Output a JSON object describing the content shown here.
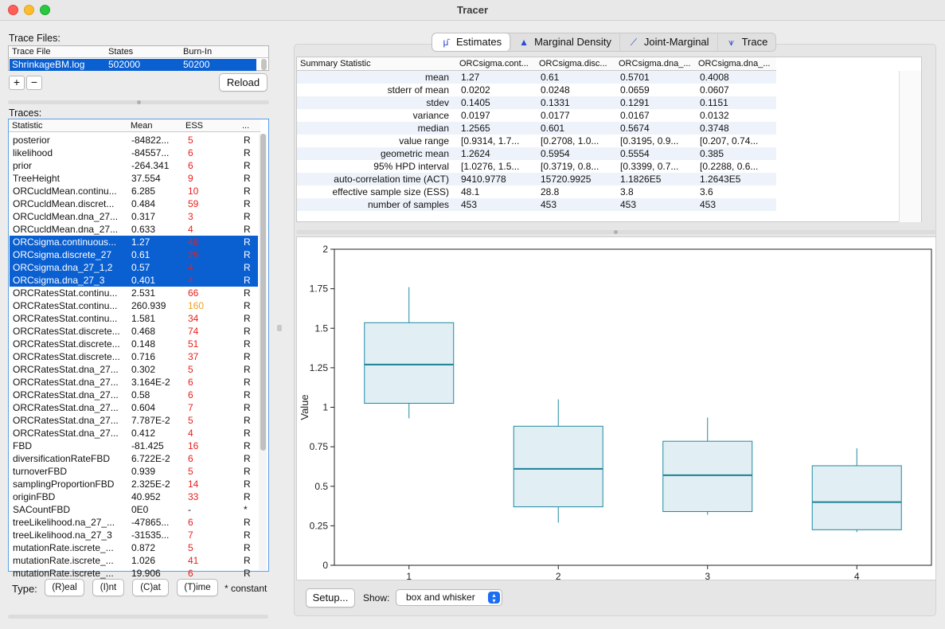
{
  "window": {
    "title": "Tracer"
  },
  "trace_files": {
    "label": "Trace Files:",
    "columns": [
      "Trace File",
      "States",
      "Burn-In"
    ],
    "row": {
      "file": "ShrinkageBM.log",
      "states": "502000",
      "burnin": "50200"
    },
    "add_label": "+",
    "remove_label": "−",
    "reload_label": "Reload"
  },
  "traces": {
    "label": "Traces:",
    "columns": [
      "Statistic",
      "Mean",
      "ESS",
      "..."
    ],
    "rows": [
      {
        "name": "posterior",
        "mean": "-84822...",
        "ess": "5",
        "type": "R",
        "ess_color": "#e8201c",
        "selected": false
      },
      {
        "name": "likelihood",
        "mean": "-84557...",
        "ess": "6",
        "type": "R",
        "ess_color": "#e8201c",
        "selected": false
      },
      {
        "name": "prior",
        "mean": "-264.341",
        "ess": "6",
        "type": "R",
        "ess_color": "#e8201c",
        "selected": false
      },
      {
        "name": "TreeHeight",
        "mean": "37.554",
        "ess": "9",
        "type": "R",
        "ess_color": "#e8201c",
        "selected": false
      },
      {
        "name": "ORCucldMean.continu...",
        "mean": "6.285",
        "ess": "10",
        "type": "R",
        "ess_color": "#e8201c",
        "selected": false
      },
      {
        "name": "ORCucldMean.discret...",
        "mean": "0.484",
        "ess": "59",
        "type": "R",
        "ess_color": "#e8201c",
        "selected": false
      },
      {
        "name": "ORCucldMean.dna_27...",
        "mean": "0.317",
        "ess": "3",
        "type": "R",
        "ess_color": "#e8201c",
        "selected": false
      },
      {
        "name": "ORCucldMean.dna_27...",
        "mean": "0.633",
        "ess": "4",
        "type": "R",
        "ess_color": "#e8201c",
        "selected": false
      },
      {
        "name": "ORCsigma.continuous...",
        "mean": "1.27",
        "ess": "48",
        "type": "R",
        "ess_color": "#e8201c",
        "selected": true
      },
      {
        "name": "ORCsigma.discrete_27",
        "mean": "0.61",
        "ess": "29",
        "type": "R",
        "ess_color": "#e8201c",
        "selected": true
      },
      {
        "name": "ORCsigma.dna_27_1,2",
        "mean": "0.57",
        "ess": "4",
        "type": "R",
        "ess_color": "#e8201c",
        "selected": true
      },
      {
        "name": "ORCsigma.dna_27_3",
        "mean": "0.401",
        "ess": "4",
        "type": "R",
        "ess_color": "#e8201c",
        "selected": true
      },
      {
        "name": "ORCRatesStat.continu...",
        "mean": "2.531",
        "ess": "66",
        "type": "R",
        "ess_color": "#e8201c",
        "selected": false
      },
      {
        "name": "ORCRatesStat.continu...",
        "mean": "260.939",
        "ess": "160",
        "type": "R",
        "ess_color": "#f0a020",
        "selected": false
      },
      {
        "name": "ORCRatesStat.continu...",
        "mean": "1.581",
        "ess": "34",
        "type": "R",
        "ess_color": "#e8201c",
        "selected": false
      },
      {
        "name": "ORCRatesStat.discrete...",
        "mean": "0.468",
        "ess": "74",
        "type": "R",
        "ess_color": "#e8201c",
        "selected": false
      },
      {
        "name": "ORCRatesStat.discrete...",
        "mean": "0.148",
        "ess": "51",
        "type": "R",
        "ess_color": "#e8201c",
        "selected": false
      },
      {
        "name": "ORCRatesStat.discrete...",
        "mean": "0.716",
        "ess": "37",
        "type": "R",
        "ess_color": "#e8201c",
        "selected": false
      },
      {
        "name": "ORCRatesStat.dna_27...",
        "mean": "0.302",
        "ess": "5",
        "type": "R",
        "ess_color": "#e8201c",
        "selected": false
      },
      {
        "name": "ORCRatesStat.dna_27...",
        "mean": "3.164E-2",
        "ess": "6",
        "type": "R",
        "ess_color": "#e8201c",
        "selected": false
      },
      {
        "name": "ORCRatesStat.dna_27...",
        "mean": "0.58",
        "ess": "6",
        "type": "R",
        "ess_color": "#e8201c",
        "selected": false
      },
      {
        "name": "ORCRatesStat.dna_27...",
        "mean": "0.604",
        "ess": "7",
        "type": "R",
        "ess_color": "#e8201c",
        "selected": false
      },
      {
        "name": "ORCRatesStat.dna_27...",
        "mean": "7.787E-2",
        "ess": "5",
        "type": "R",
        "ess_color": "#e8201c",
        "selected": false
      },
      {
        "name": "ORCRatesStat.dna_27...",
        "mean": "0.412",
        "ess": "4",
        "type": "R",
        "ess_color": "#e8201c",
        "selected": false
      },
      {
        "name": "FBD",
        "mean": "-81.425",
        "ess": "16",
        "type": "R",
        "ess_color": "#e8201c",
        "selected": false
      },
      {
        "name": "diversificationRateFBD",
        "mean": "6.722E-2",
        "ess": "6",
        "type": "R",
        "ess_color": "#e8201c",
        "selected": false
      },
      {
        "name": "turnoverFBD",
        "mean": "0.939",
        "ess": "5",
        "type": "R",
        "ess_color": "#e8201c",
        "selected": false
      },
      {
        "name": "samplingProportionFBD",
        "mean": "2.325E-2",
        "ess": "14",
        "type": "R",
        "ess_color": "#e8201c",
        "selected": false
      },
      {
        "name": "originFBD",
        "mean": "40.952",
        "ess": "33",
        "type": "R",
        "ess_color": "#e8201c",
        "selected": false
      },
      {
        "name": "SACountFBD",
        "mean": "0E0",
        "ess": "-",
        "type": "*",
        "ess_color": "#111111",
        "selected": false
      },
      {
        "name": "treeLikelihood.na_27_...",
        "mean": "-47865...",
        "ess": "6",
        "type": "R",
        "ess_color": "#e8201c",
        "selected": false
      },
      {
        "name": "treeLikelihood.na_27_3",
        "mean": "-31535...",
        "ess": "7",
        "type": "R",
        "ess_color": "#e8201c",
        "selected": false
      },
      {
        "name": "mutationRate.iscrete_...",
        "mean": "0.872",
        "ess": "5",
        "type": "R",
        "ess_color": "#e8201c",
        "selected": false
      },
      {
        "name": "mutationRate.iscrete_...",
        "mean": "1.026",
        "ess": "41",
        "type": "R",
        "ess_color": "#e8201c",
        "selected": false
      },
      {
        "name": "mutationRate.iscrete_...",
        "mean": "19.906",
        "ess": "6",
        "type": "R",
        "ess_color": "#e8201c",
        "selected": false
      }
    ]
  },
  "type_bar": {
    "label": "Type:",
    "buttons": [
      "(R)eal",
      "(I)nt",
      "(C)at",
      "(T)ime"
    ],
    "note": "* constant"
  },
  "tabs": [
    {
      "label": "Estimates",
      "icon": "mu-icon",
      "active": true
    },
    {
      "label": "Marginal Density",
      "icon": "density-icon",
      "active": false
    },
    {
      "label": "Joint-Marginal",
      "icon": "joint-marginal-icon",
      "active": false
    },
    {
      "label": "Trace",
      "icon": "trace-icon",
      "active": false
    }
  ],
  "summary": {
    "columns": [
      "Summary Statistic",
      "ORCsigma.cont...",
      "ORCsigma.disc...",
      "ORCsigma.dna_...",
      "ORCsigma.dna_..."
    ],
    "rows": [
      {
        "stat": "mean",
        "values": [
          "1.27",
          "0.61",
          "0.5701",
          "0.4008"
        ]
      },
      {
        "stat": "stderr of mean",
        "values": [
          "0.0202",
          "0.0248",
          "0.0659",
          "0.0607"
        ]
      },
      {
        "stat": "stdev",
        "values": [
          "0.1405",
          "0.1331",
          "0.1291",
          "0.1151"
        ]
      },
      {
        "stat": "variance",
        "values": [
          "0.0197",
          "0.0177",
          "0.0167",
          "0.0132"
        ]
      },
      {
        "stat": "median",
        "values": [
          "1.2565",
          "0.601",
          "0.5674",
          "0.3748"
        ]
      },
      {
        "stat": "value range",
        "values": [
          "[0.9314, 1.7...",
          "[0.2708, 1.0...",
          "[0.3195, 0.9...",
          "[0.207, 0.74..."
        ]
      },
      {
        "stat": "geometric mean",
        "values": [
          "1.2624",
          "0.5954",
          "0.5554",
          "0.385"
        ]
      },
      {
        "stat": "95% HPD interval",
        "values": [
          "[1.0276, 1.5...",
          "[0.3719, 0.8...",
          "[0.3399, 0.7...",
          "[0.2288, 0.6..."
        ]
      },
      {
        "stat": "auto-correlation time (ACT)",
        "values": [
          "9410.9778",
          "15720.9925",
          "1.1826E5",
          "1.2643E5"
        ]
      },
      {
        "stat": "effective sample size (ESS)",
        "values": [
          "48.1",
          "28.8",
          "3.8",
          "3.6"
        ]
      },
      {
        "stat": "number of samples",
        "values": [
          "453",
          "453",
          "453",
          "453"
        ]
      }
    ]
  },
  "chart_data": {
    "type": "box",
    "categories": [
      "1",
      "2",
      "3",
      "4"
    ],
    "boxes": [
      {
        "min": 0.93,
        "q1": 1.025,
        "median": 1.27,
        "q3": 1.535,
        "max": 1.76
      },
      {
        "min": 0.27,
        "q1": 0.37,
        "median": 0.61,
        "q3": 0.88,
        "max": 1.05
      },
      {
        "min": 0.32,
        "q1": 0.34,
        "median": 0.57,
        "q3": 0.785,
        "max": 0.935
      },
      {
        "min": 0.21,
        "q1": 0.225,
        "median": 0.4,
        "q3": 0.63,
        "max": 0.74
      }
    ],
    "ylabel": "Value",
    "ylim": [
      0,
      2
    ],
    "yticks": [
      "0",
      "0.25",
      "0.5",
      "0.75",
      "1",
      "1.25",
      "1.5",
      "1.75",
      "2"
    ],
    "box_fill": "#e1eef3",
    "box_stroke": "#1e8aa0",
    "median_stroke": "#1a8296"
  },
  "plot_controls": {
    "setup_label": "Setup...",
    "show_label": "Show:",
    "show_value": "box and whisker"
  }
}
